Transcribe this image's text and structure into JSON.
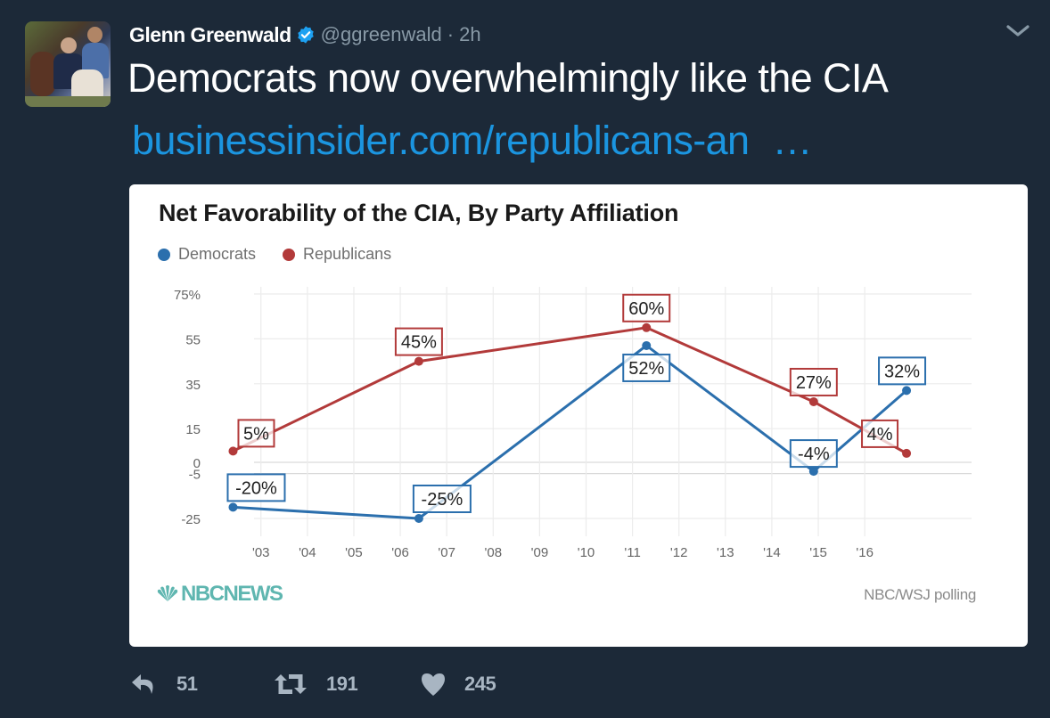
{
  "tweet": {
    "author_name": "Glenn Greenwald",
    "verified_icon": "verified-badge-icon",
    "handle": "@ggreenwald",
    "separator": "·",
    "time": "2h",
    "text": "Democrats now overwhelmingly like the CIA",
    "link_text": "businessinsider.com/republicans-an",
    "link_ellipsis": "…",
    "menu_icon": "chevron-down-icon"
  },
  "card": {
    "logo": "NBCNEWS",
    "source": "NBC/WSJ polling"
  },
  "actions": {
    "reply": {
      "icon": "reply-icon",
      "count": "51"
    },
    "retweet": {
      "icon": "retweet-icon",
      "count": "191"
    },
    "like": {
      "icon": "heart-icon",
      "count": "245"
    }
  },
  "colors": {
    "background": "#1c2938",
    "link": "#1b95e0",
    "democrats": "#2b6fad",
    "republicans": "#b23a3a",
    "muted": "#8899a6"
  },
  "chart_data": {
    "type": "line",
    "title": "Net Favorability of the CIA, By Party Affiliation",
    "xlabel": "",
    "ylabel": "",
    "x_tick_labels": [
      "'03",
      "'04",
      "'05",
      "'06",
      "'07",
      "'08",
      "'09",
      "'10",
      "'11",
      "'12",
      "'13",
      "'14",
      "'15",
      "'16"
    ],
    "x_ticks": [
      2003,
      2004,
      2005,
      2006,
      2007,
      2008,
      2009,
      2010,
      2011,
      2012,
      2013,
      2014,
      2015,
      2016
    ],
    "xlim": [
      2001.7,
      2018.3
    ],
    "y_tick_labels": [
      "75%",
      "55",
      "35",
      "15",
      "0",
      "-5",
      "-25"
    ],
    "y_ticks": [
      75,
      55,
      35,
      15,
      0,
      -5,
      -25
    ],
    "ylim": [
      -30,
      78
    ],
    "grid": true,
    "legend_position": "top-left",
    "series": [
      {
        "name": "Democrats",
        "color": "#2b6fad",
        "x": [
          2002.4,
          2006.4,
          2011.3,
          2014.9,
          2016.9
        ],
        "values": [
          -20,
          -25,
          52,
          -4,
          32
        ],
        "labels": [
          "-20%",
          "-25%",
          "52%",
          "-4%",
          "32%"
        ]
      },
      {
        "name": "Republicans",
        "color": "#b23a3a",
        "x": [
          2002.4,
          2006.4,
          2011.3,
          2014.9,
          2016.9
        ],
        "values": [
          5,
          45,
          60,
          27,
          4
        ],
        "labels": [
          "5%",
          "45%",
          "60%",
          "27%",
          "4%"
        ]
      }
    ]
  }
}
